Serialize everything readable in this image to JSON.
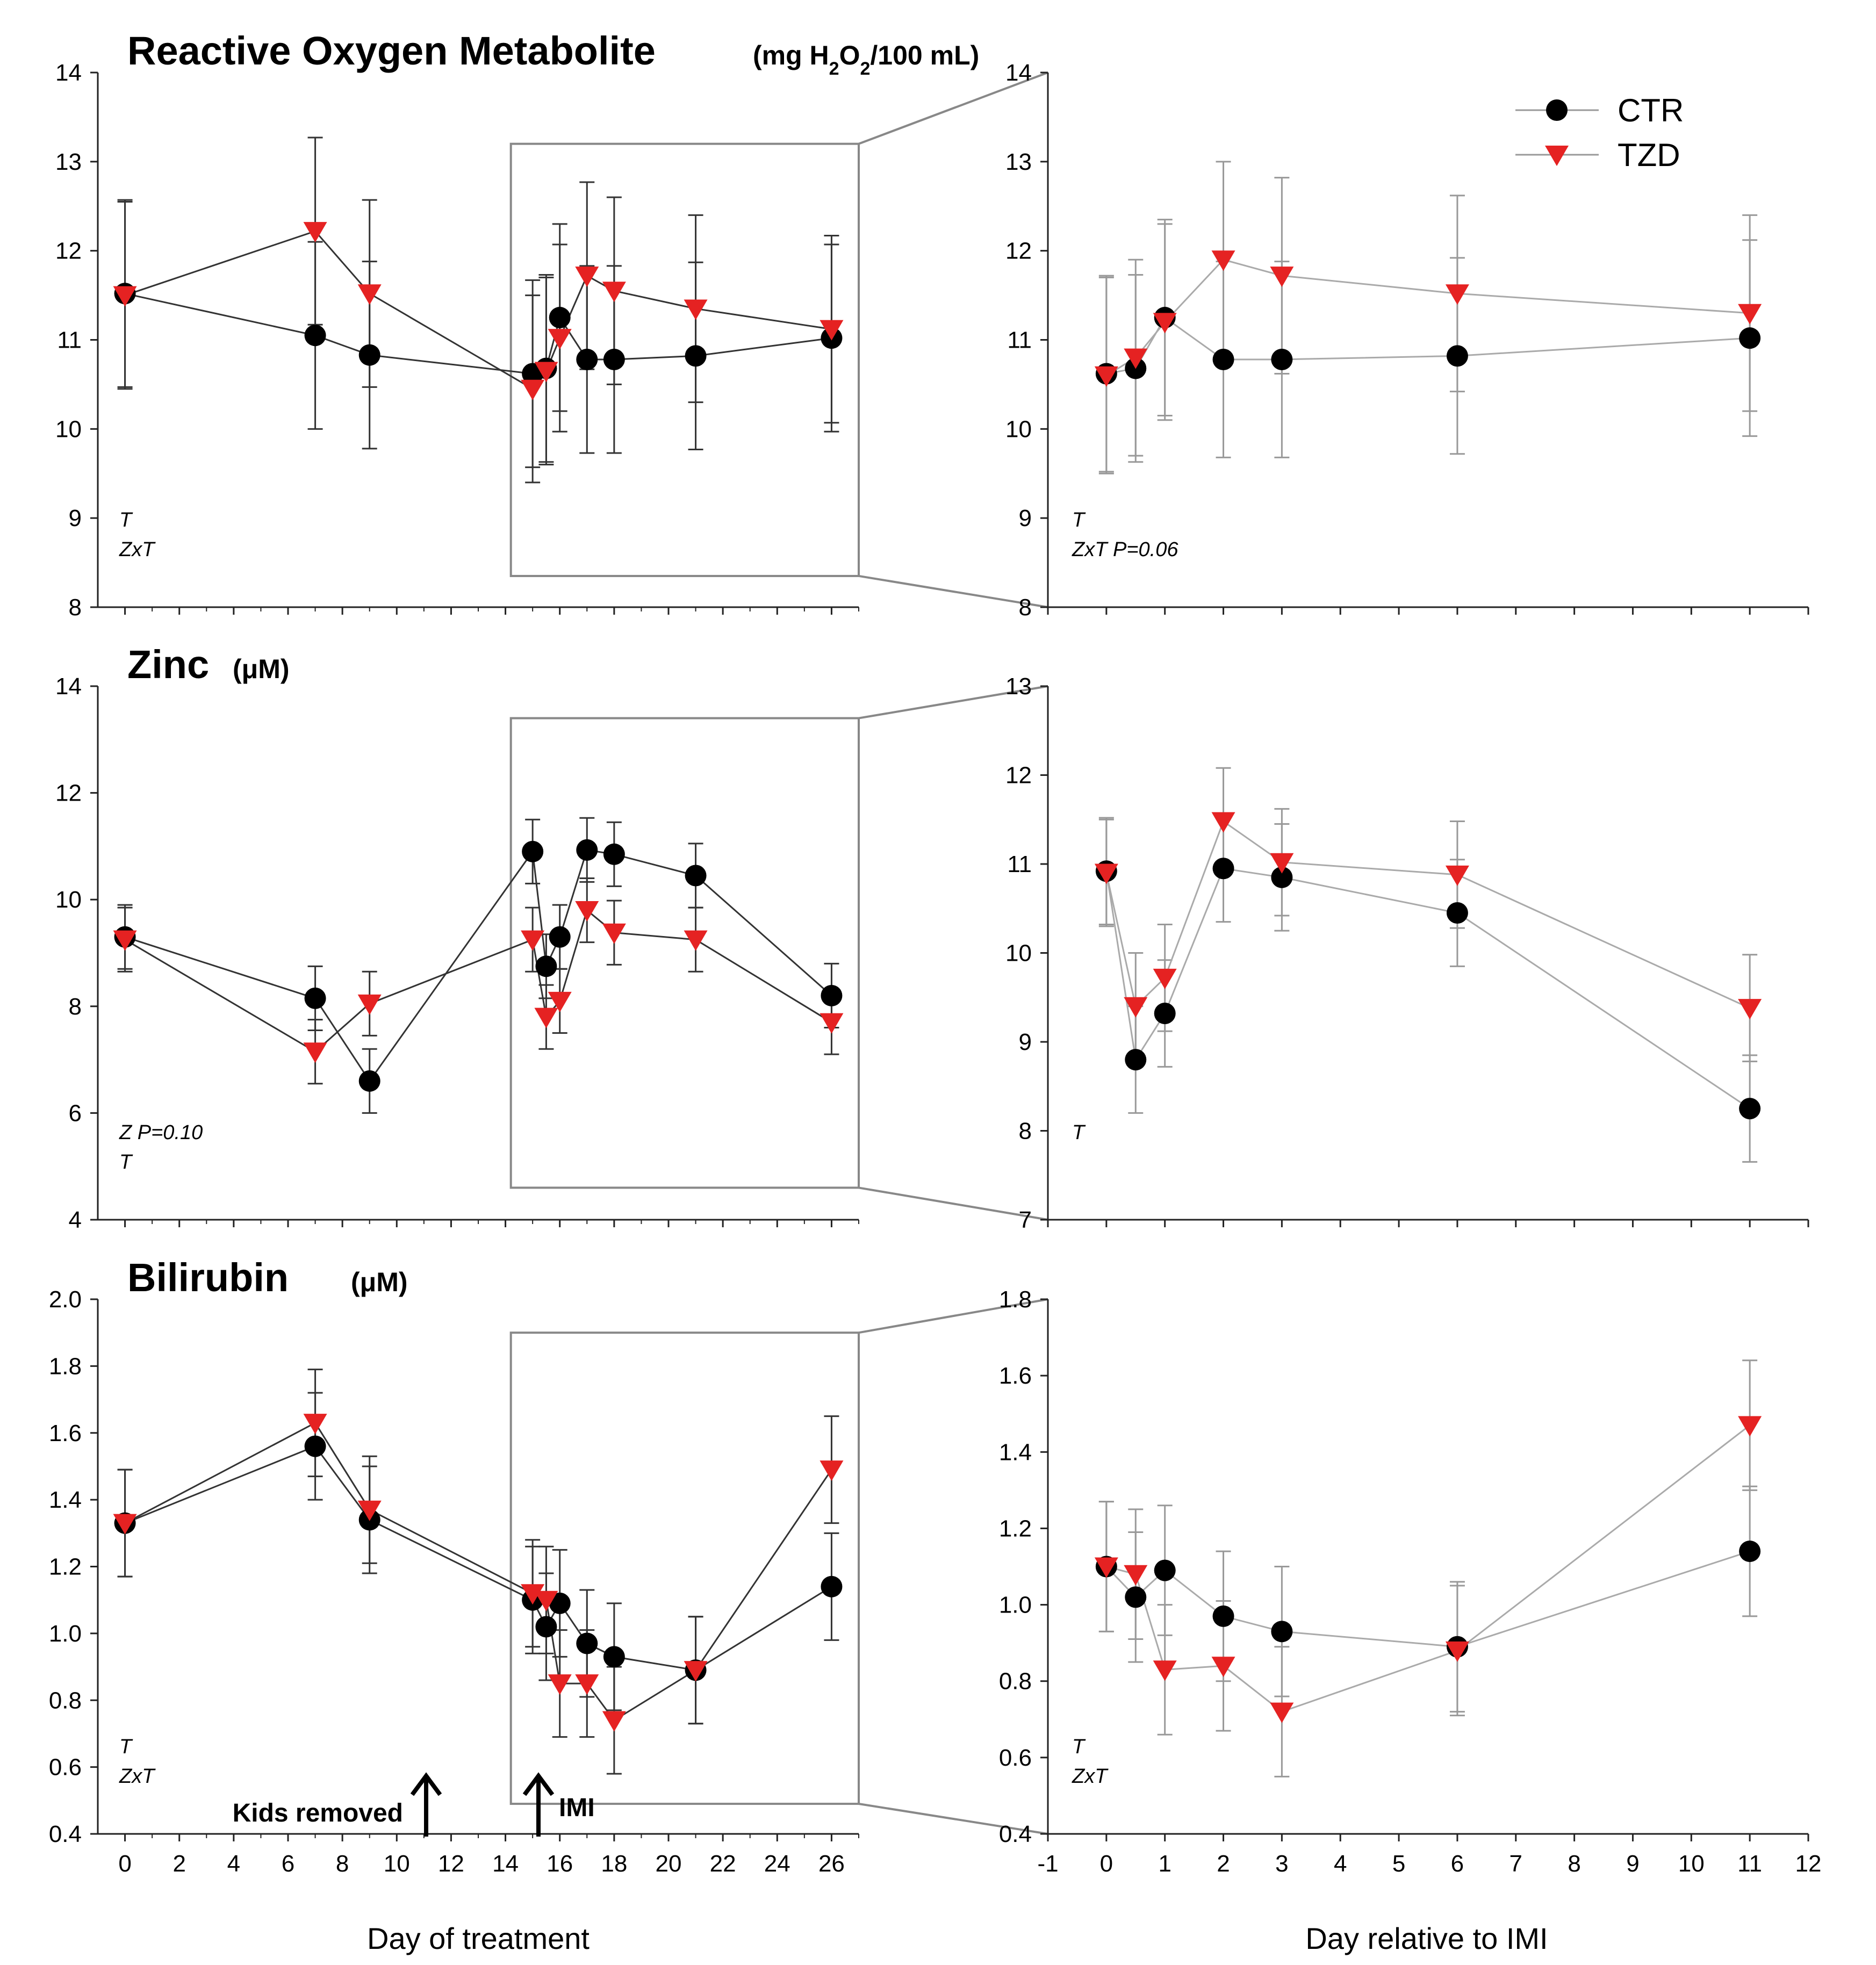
{
  "figure": {
    "xlabel_left": "Day of treatment",
    "xlabel_right": "Day relative to IMI",
    "legend": [
      {
        "name": "CTR",
        "color": "#000000",
        "marker": "circle"
      },
      {
        "name": "TZD",
        "color": "#e52222",
        "marker": "triangle-down"
      }
    ],
    "arrow_labels": {
      "kids": "Kids removed",
      "imi": "IMI"
    }
  },
  "chart_data": [
    {
      "type": "line",
      "id": "ros-left",
      "title": "Reactive Oxygen Metabolite",
      "unit_parts": [
        "(mg H",
        "2",
        "O",
        "2",
        "/100 mL)"
      ],
      "xlabel": "Day of treatment",
      "ylabel": "",
      "xlim": [
        -1,
        27
      ],
      "ylim": [
        8,
        14
      ],
      "xticks": [
        0,
        2,
        4,
        6,
        8,
        10,
        12,
        14,
        16,
        18,
        20,
        22,
        24,
        26
      ],
      "yticks": [
        8,
        9,
        10,
        11,
        12,
        13,
        14
      ],
      "notes": [
        "T",
        "ZxT"
      ],
      "zoom_box": {
        "x": [
          14.2,
          27
        ],
        "y": [
          8.35,
          13.2
        ]
      },
      "series": [
        {
          "name": "CTR",
          "x": [
            0,
            7,
            9,
            15,
            15.5,
            16,
            17,
            18,
            21,
            26
          ],
          "y": [
            11.52,
            11.05,
            10.83,
            10.62,
            10.68,
            11.25,
            10.78,
            10.78,
            10.82,
            11.02
          ],
          "err": [
            1.05,
            1.05,
            1.05,
            1.05,
            1.05,
            1.05,
            1.05,
            1.05,
            1.05,
            1.05
          ]
        },
        {
          "name": "TZD",
          "x": [
            0,
            7,
            9,
            15,
            15.5,
            16,
            17,
            18,
            21,
            26
          ],
          "y": [
            11.5,
            12.22,
            11.52,
            10.45,
            10.65,
            11.02,
            11.72,
            11.55,
            11.35,
            11.12
          ],
          "err": [
            1.05,
            1.05,
            1.05,
            1.05,
            1.05,
            1.05,
            1.05,
            1.05,
            1.05,
            1.05
          ]
        }
      ]
    },
    {
      "type": "line",
      "id": "ros-right",
      "xlabel": "Day relative to IMI",
      "xlim": [
        -1,
        12
      ],
      "ylim": [
        8,
        14
      ],
      "xticks": [
        -1,
        0,
        1,
        2,
        3,
        4,
        5,
        6,
        7,
        8,
        9,
        10,
        11,
        12
      ],
      "yticks": [
        8,
        9,
        10,
        11,
        12,
        13,
        14
      ],
      "notes": [
        "T",
        "ZxT P=0.06"
      ],
      "series": [
        {
          "name": "CTR",
          "x": [
            0,
            0.5,
            1,
            2,
            3,
            6,
            11
          ],
          "y": [
            10.62,
            10.68,
            11.25,
            10.78,
            10.78,
            10.82,
            11.02
          ],
          "err": [
            1.1,
            1.05,
            1.1,
            1.1,
            1.1,
            1.1,
            1.1
          ]
        },
        {
          "name": "TZD",
          "x": [
            0,
            0.5,
            1,
            2,
            3,
            6,
            11
          ],
          "y": [
            10.6,
            10.8,
            11.2,
            11.9,
            11.72,
            11.52,
            11.3
          ],
          "err": [
            1.1,
            1.1,
            1.1,
            1.1,
            1.1,
            1.1,
            1.1
          ]
        }
      ]
    },
    {
      "type": "line",
      "id": "zinc-left",
      "title": "Zinc",
      "unit_parts": [
        "(μM)"
      ],
      "xlabel": "Day of treatment",
      "xlim": [
        -1,
        27
      ],
      "ylim": [
        4,
        14
      ],
      "xticks": [
        0,
        2,
        4,
        6,
        8,
        10,
        12,
        14,
        16,
        18,
        20,
        22,
        24,
        26
      ],
      "yticks": [
        4,
        6,
        8,
        10,
        12,
        14
      ],
      "notes": [
        "Z  P=0.10",
        "T"
      ],
      "zoom_box": {
        "x": [
          14.2,
          27
        ],
        "y": [
          4.6,
          13.4
        ]
      },
      "series": [
        {
          "name": "CTR",
          "x": [
            0,
            7,
            9,
            15,
            15.5,
            16,
            17,
            18,
            21,
            26
          ],
          "y": [
            9.3,
            8.15,
            6.6,
            10.9,
            8.75,
            9.3,
            10.93,
            10.85,
            10.45,
            8.2
          ],
          "err": [
            0.6,
            0.6,
            0.6,
            0.6,
            0.6,
            0.6,
            0.6,
            0.6,
            0.6,
            0.6
          ]
        },
        {
          "name": "TZD",
          "x": [
            0,
            7,
            9,
            15,
            15.5,
            16,
            17,
            18,
            21,
            26
          ],
          "y": [
            9.25,
            7.15,
            8.05,
            9.25,
            7.8,
            8.1,
            9.8,
            9.38,
            9.25,
            7.7
          ],
          "err": [
            0.6,
            0.6,
            0.6,
            0.6,
            0.6,
            0.6,
            0.6,
            0.6,
            0.6,
            0.6
          ]
        }
      ]
    },
    {
      "type": "line",
      "id": "zinc-right",
      "xlabel": "Day relative to IMI",
      "xlim": [
        -1,
        12
      ],
      "ylim": [
        7,
        13
      ],
      "xticks": [
        -1,
        0,
        1,
        2,
        3,
        4,
        5,
        6,
        7,
        8,
        9,
        10,
        11,
        12
      ],
      "yticks": [
        7,
        8,
        9,
        10,
        11,
        12,
        13
      ],
      "notes": [
        "T"
      ],
      "series": [
        {
          "name": "CTR",
          "x": [
            0,
            0.5,
            1,
            2,
            3,
            6,
            11
          ],
          "y": [
            10.92,
            8.8,
            9.32,
            10.95,
            10.85,
            10.45,
            8.25
          ],
          "err": [
            0.6,
            0.6,
            0.6,
            0.6,
            0.6,
            0.6,
            0.6
          ]
        },
        {
          "name": "TZD",
          "x": [
            0,
            0.5,
            1,
            2,
            3,
            6,
            11
          ],
          "y": [
            10.9,
            9.4,
            9.72,
            11.48,
            11.02,
            10.88,
            9.38
          ],
          "err": [
            0.6,
            0.6,
            0.6,
            0.6,
            0.6,
            0.6,
            0.6
          ]
        }
      ]
    },
    {
      "type": "line",
      "id": "bili-left",
      "title": "Bilirubin",
      "unit_parts": [
        "(μM)"
      ],
      "xlabel": "Day of treatment",
      "xlim": [
        -1,
        27
      ],
      "ylim": [
        0.4,
        2.0
      ],
      "xticks": [
        0,
        2,
        4,
        6,
        8,
        10,
        12,
        14,
        16,
        18,
        20,
        22,
        24,
        26
      ],
      "yticks": [
        0.4,
        0.6,
        0.8,
        1.0,
        1.2,
        1.4,
        1.6,
        1.8,
        2.0
      ],
      "notes": [
        "T",
        "ZxT"
      ],
      "zoom_box": {
        "x": [
          14.2,
          27
        ],
        "y": [
          0.49,
          1.9
        ]
      },
      "series": [
        {
          "name": "CTR",
          "x": [
            0,
            7,
            9,
            15,
            15.5,
            16,
            17,
            18,
            21,
            26
          ],
          "y": [
            1.33,
            1.56,
            1.34,
            1.1,
            1.02,
            1.09,
            0.97,
            0.93,
            0.89,
            1.14
          ],
          "err": [
            0.16,
            0.16,
            0.16,
            0.16,
            0.16,
            0.16,
            0.16,
            0.16,
            0.16,
            0.16
          ]
        },
        {
          "name": "TZD",
          "x": [
            0,
            7,
            9,
            15,
            15.5,
            16,
            17,
            18,
            21,
            26
          ],
          "y": [
            1.33,
            1.63,
            1.37,
            1.12,
            1.1,
            0.85,
            0.85,
            0.74,
            0.89,
            1.49
          ],
          "err": [
            0.16,
            0.16,
            0.16,
            0.16,
            0.16,
            0.16,
            0.16,
            0.16,
            0.16,
            0.16
          ]
        }
      ]
    },
    {
      "type": "line",
      "id": "bili-right",
      "xlabel": "Day relative to IMI",
      "xlim": [
        -1,
        12
      ],
      "ylim": [
        0.4,
        1.8
      ],
      "xticks": [
        -1,
        0,
        1,
        2,
        3,
        4,
        5,
        6,
        7,
        8,
        9,
        10,
        11,
        12
      ],
      "yticks": [
        0.4,
        0.6,
        0.8,
        1.0,
        1.2,
        1.4,
        1.6,
        1.8
      ],
      "notes": [
        "T",
        "ZxT"
      ],
      "series": [
        {
          "name": "CTR",
          "x": [
            0,
            0.5,
            1,
            2,
            3,
            6,
            11
          ],
          "y": [
            1.1,
            1.02,
            1.09,
            0.97,
            0.93,
            0.89,
            1.14
          ],
          "err": [
            0.17,
            0.17,
            0.17,
            0.17,
            0.17,
            0.17,
            0.17
          ]
        },
        {
          "name": "TZD",
          "x": [
            0,
            0.5,
            1,
            2,
            3,
            6,
            11
          ],
          "y": [
            1.1,
            1.08,
            0.83,
            0.84,
            0.72,
            0.88,
            1.47
          ],
          "err": [
            0.17,
            0.17,
            0.17,
            0.17,
            0.17,
            0.17,
            0.17
          ]
        }
      ]
    }
  ]
}
